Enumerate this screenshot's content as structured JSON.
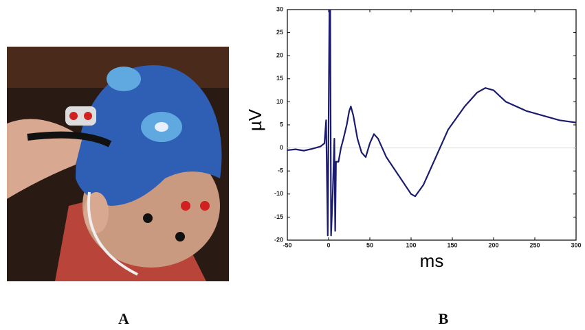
{
  "panels": {
    "a": "A",
    "b": "B"
  },
  "chart_data": {
    "type": "line",
    "xlabel": "ms",
    "ylabel": "µV",
    "x": [
      -50,
      -40,
      -30,
      -20,
      -10,
      -5,
      -3,
      -1,
      1,
      2,
      3,
      5,
      7,
      8,
      9,
      12,
      15,
      18,
      22,
      25,
      27,
      30,
      35,
      40,
      45,
      50,
      55,
      60,
      70,
      85,
      100,
      105,
      115,
      130,
      145,
      165,
      180,
      190,
      200,
      215,
      240,
      260,
      280,
      300
    ],
    "series": [
      {
        "color": "#1c1c6e",
        "values": [
          -0.5,
          -0.3,
          -0.6,
          -0.2,
          0.3,
          1,
          6,
          -19,
          30,
          30,
          -19,
          -10,
          2,
          -18,
          -3,
          -3,
          0,
          2,
          5,
          8,
          9,
          7,
          2,
          -1,
          -2,
          1,
          3,
          2,
          -2,
          -6,
          -10,
          -10.5,
          -8,
          -2,
          4,
          9,
          12,
          13,
          12.5,
          10,
          8,
          7,
          6,
          5.5
        ]
      }
    ],
    "xlim": [
      -50,
      300
    ],
    "xticks": [
      -50,
      0,
      50,
      100,
      150,
      200,
      250,
      300
    ],
    "ylim": [
      -20,
      30
    ],
    "yticks": [
      -20,
      -15,
      -10,
      -5,
      0,
      5,
      10,
      15,
      20,
      25,
      30
    ]
  }
}
